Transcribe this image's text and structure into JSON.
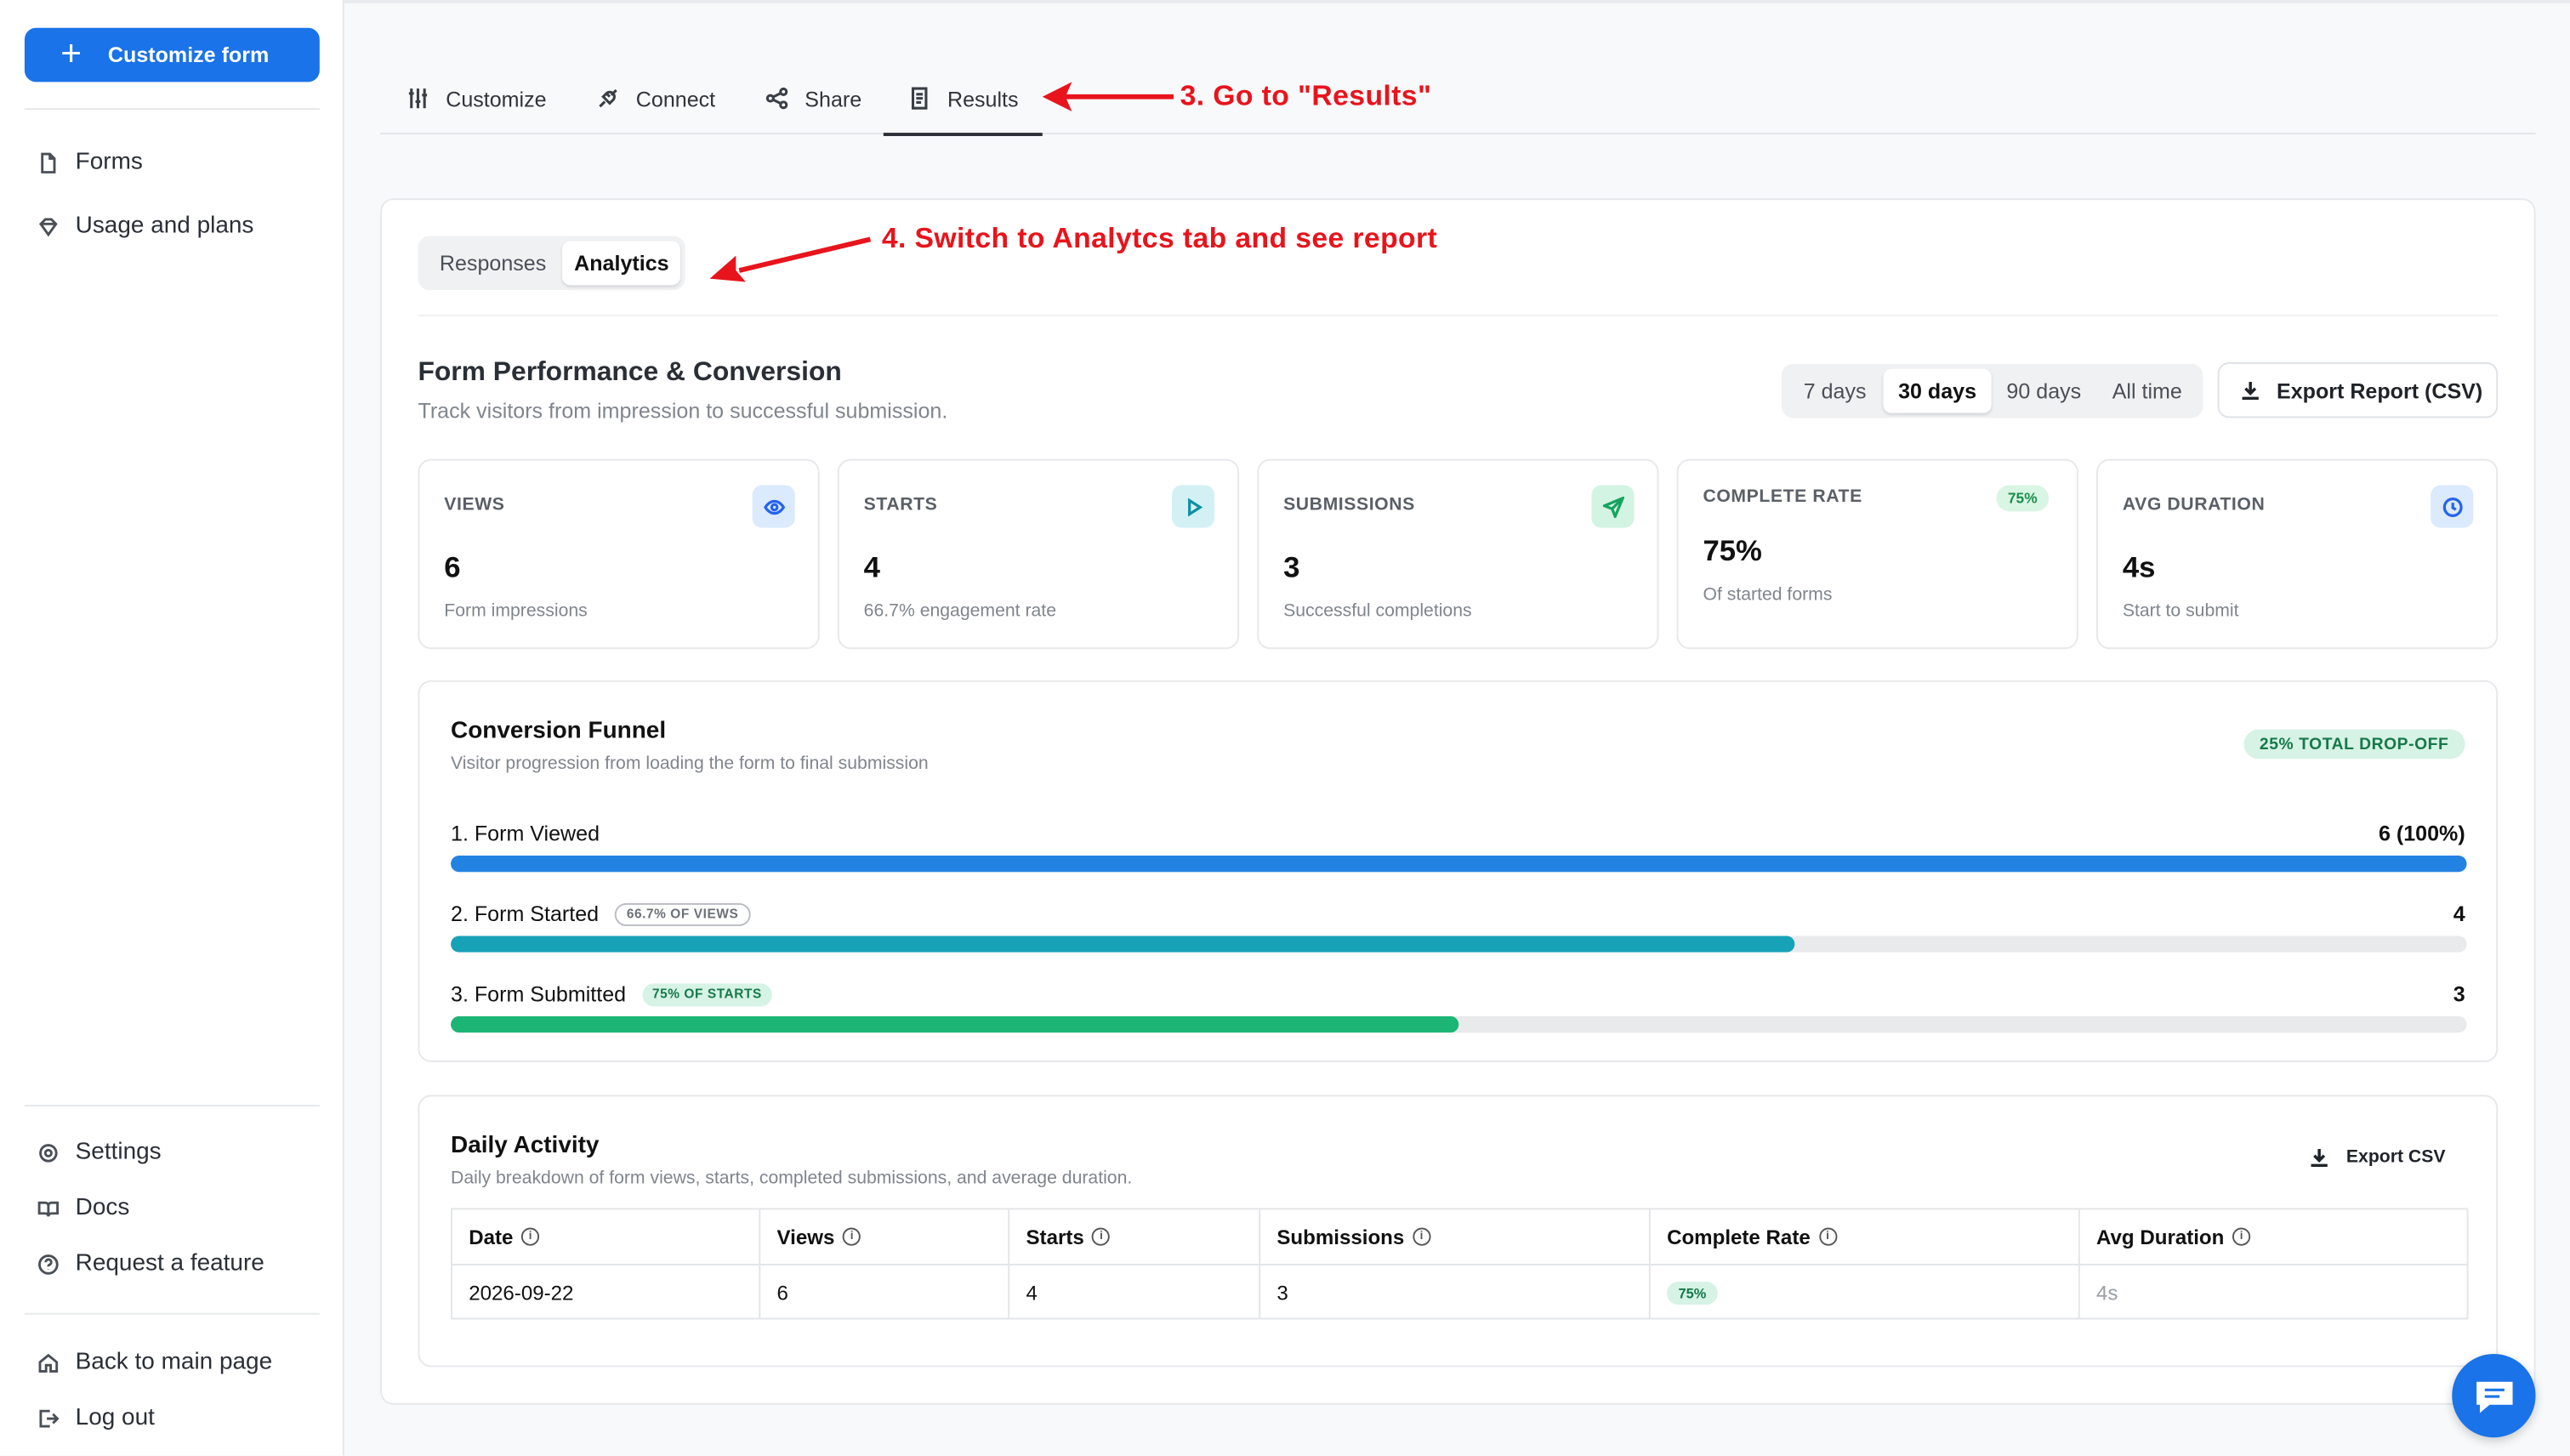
{
  "sidebar": {
    "customize_label": "Customize form",
    "nav": [
      {
        "label": "Forms",
        "icon": "file-icon"
      },
      {
        "label": "Usage and plans",
        "icon": "diamond-icon"
      }
    ],
    "bottom": [
      {
        "label": "Settings",
        "icon": "gear-icon"
      },
      {
        "label": "Docs",
        "icon": "book-icon"
      },
      {
        "label": "Request a feature",
        "icon": "question-icon"
      }
    ],
    "footer": [
      {
        "label": "Back to main page",
        "icon": "home-icon"
      },
      {
        "label": "Log out",
        "icon": "logout-icon"
      }
    ]
  },
  "tabs": [
    {
      "label": "Customize",
      "icon": "sliders-icon"
    },
    {
      "label": "Connect",
      "icon": "plug-icon"
    },
    {
      "label": "Share",
      "icon": "share-icon"
    },
    {
      "label": "Results",
      "icon": "document-icon",
      "active": true
    }
  ],
  "annotations": {
    "step3": "3. Go to \"Results\"",
    "step4": "4. Switch to Analytcs tab and see report",
    "color": "#e8141c"
  },
  "results_tabs": {
    "responses": "Responses",
    "analytics": "Analytics",
    "active": "Analytics"
  },
  "performance": {
    "title": "Form Performance & Conversion",
    "subtitle": "Track visitors from impression to successful submission.",
    "ranges": [
      "7 days",
      "30 days",
      "90 days",
      "All time"
    ],
    "selected_range": "30 days",
    "export_label": "Export Report (CSV)"
  },
  "metrics": [
    {
      "label": "VIEWS",
      "value": "6",
      "sub": "Form impressions",
      "icon": "eye-icon"
    },
    {
      "label": "STARTS",
      "value": "4",
      "sub": "66.7% engagement rate",
      "icon": "play-icon"
    },
    {
      "label": "SUBMISSIONS",
      "value": "3",
      "sub": "Successful completions",
      "icon": "send-icon"
    },
    {
      "label": "COMPLETE RATE",
      "value": "75%",
      "sub": "Of started forms",
      "badge": "75%"
    },
    {
      "label": "AVG DURATION",
      "value": "4s",
      "sub": "Start to submit",
      "icon": "clock-icon"
    }
  ],
  "funnel": {
    "title": "Conversion Funnel",
    "subtitle": "Visitor progression from loading the form to final submission",
    "dropoff": "25% TOTAL DROP-OFF",
    "steps": [
      {
        "label": "1. Form Viewed",
        "value": "6 (100%)",
        "fraction": 1.0,
        "color": "#2383e2",
        "pill": ""
      },
      {
        "label": "2. Form Started",
        "value": "4",
        "fraction": 0.667,
        "color": "#17a2b8",
        "pill": "66.7% OF VIEWS"
      },
      {
        "label": "3. Form Submitted",
        "value": "3",
        "fraction": 0.5,
        "color": "#1db576",
        "pill": "75% OF STARTS"
      }
    ]
  },
  "daily": {
    "title": "Daily Activity",
    "subtitle": "Daily breakdown of form views, starts, completed submissions, and average duration.",
    "export_label": "Export CSV",
    "columns": [
      "Date",
      "Views",
      "Starts",
      "Submissions",
      "Complete Rate",
      "Avg Duration"
    ],
    "rows": [
      {
        "date": "2026-09-22",
        "views": "6",
        "starts": "4",
        "submissions": "3",
        "rate": "75%",
        "duration": "4s"
      }
    ]
  }
}
